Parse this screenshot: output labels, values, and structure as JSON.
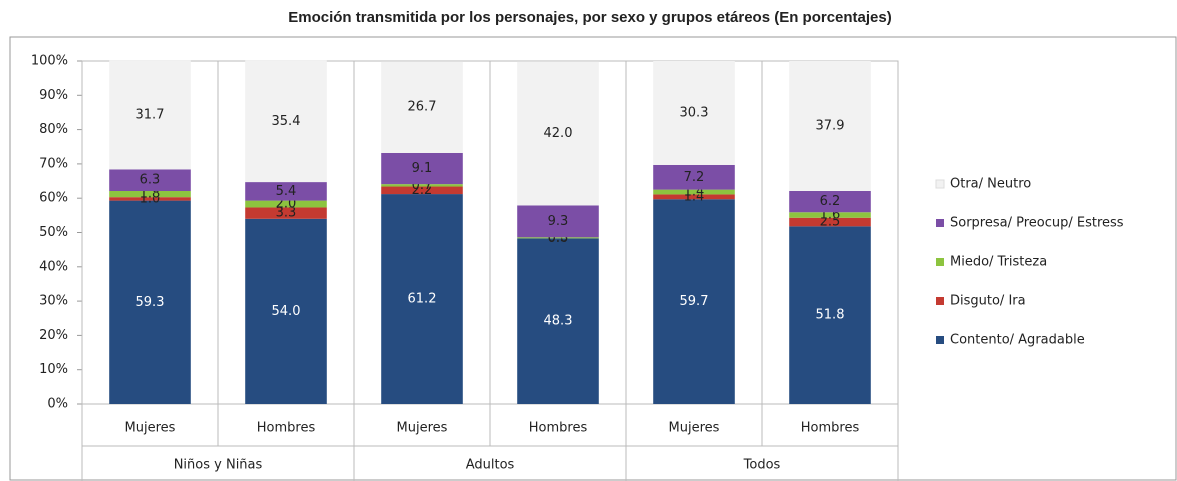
{
  "chart_data": {
    "type": "stacked_bar",
    "title": "Emoción transmitida por los personajes, por sexo y grupos etáreos (En porcentajes)",
    "categories": [
      "Mujeres",
      "Hombres",
      "Mujeres",
      "Hombres",
      "Mujeres",
      "Hombres"
    ],
    "groups": [
      "Niños y Niñas",
      "Adultos",
      "Todos"
    ],
    "series": [
      {
        "name": "Contento/ Agradable",
        "color": "#264c80",
        "values": [
          59.3,
          54.0,
          61.2,
          48.3,
          59.7,
          51.8
        ],
        "value_labels": [
          "59.3",
          "54.0",
          "61.2",
          "48.3",
          "59.7",
          "51.8"
        ]
      },
      {
        "name": "Disguto/ Ira",
        "color": "#c43a31",
        "values": [
          1.0,
          3.3,
          2.2,
          0.0,
          1.4,
          2.5
        ],
        "value_labels": [
          "1.0",
          "3.3",
          "2.2",
          "0.0",
          "1.4",
          "2.5"
        ]
      },
      {
        "name": "Miedo/ Tristeza",
        "color": "#8dc43f",
        "values": [
          1.8,
          2.0,
          0.7,
          0.3,
          1.4,
          1.6
        ],
        "value_labels": [
          "1.8",
          "2.0",
          "0.7",
          "0.3",
          "1.4",
          "1.6"
        ]
      },
      {
        "name": "Sorpresa/ Preocup/ Estress",
        "color": "#7b4ea6",
        "values": [
          6.3,
          5.4,
          9.1,
          9.3,
          7.2,
          6.2
        ],
        "value_labels": [
          "6.3",
          "5.4",
          "9.1",
          "9.3",
          "7.2",
          "6.2"
        ]
      },
      {
        "name": "Otra/ Neutro",
        "color": "#f2f2f2",
        "values": [
          31.7,
          35.4,
          26.7,
          42.0,
          30.3,
          37.9
        ],
        "value_labels": [
          "31.7",
          "35.4",
          "26.7",
          "42.0",
          "30.3",
          "37.9"
        ]
      }
    ],
    "ylim": [
      0,
      100
    ],
    "yticks": [
      {
        "value": 0,
        "label": "0%"
      },
      {
        "value": 10,
        "label": "10%"
      },
      {
        "value": 20,
        "label": "20%"
      },
      {
        "value": 30,
        "label": "30%"
      },
      {
        "value": 40,
        "label": "40%"
      },
      {
        "value": 50,
        "label": "50%"
      },
      {
        "value": 60,
        "label": "60%"
      },
      {
        "value": 70,
        "label": "70%"
      },
      {
        "value": 80,
        "label": "80%"
      },
      {
        "value": 90,
        "label": "90%"
      },
      {
        "value": 100,
        "label": "100%"
      }
    ],
    "grid": false,
    "legend": "right"
  }
}
